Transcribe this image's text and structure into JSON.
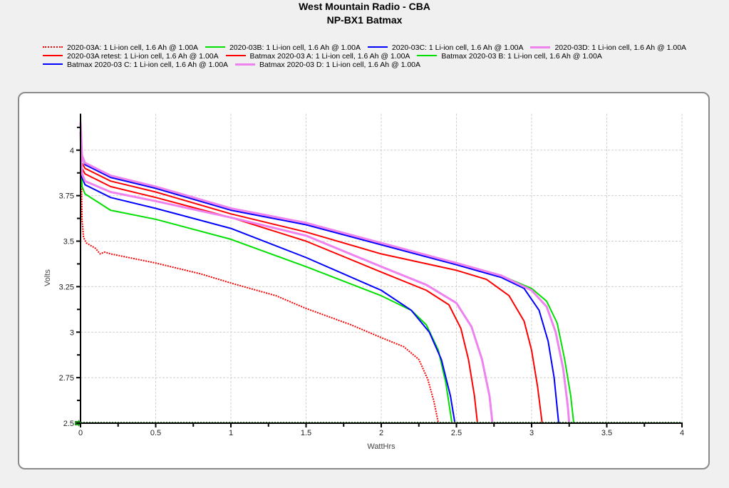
{
  "title": "West Mountain Radio - CBA",
  "subtitle": "NP-BX1 Batmax",
  "legend": {
    "rows": [
      [
        0,
        1,
        2,
        3
      ],
      [
        4,
        5,
        6
      ],
      [
        7,
        8
      ]
    ]
  },
  "chart_data": {
    "type": "line",
    "title": "West Mountain Radio - CBA",
    "subtitle": "NP-BX1 Batmax",
    "xlabel": "WattHrs",
    "ylabel": "Volts",
    "xlim": [
      0,
      4
    ],
    "ylim": [
      2.5,
      4.2
    ],
    "xticks": [
      0,
      0.5,
      1,
      1.5,
      2,
      2.5,
      3,
      3.5,
      4
    ],
    "xtick_labels": [
      "0",
      "0.5",
      "1",
      "1.5",
      "2",
      "2.5",
      "3",
      "3.5",
      "4"
    ],
    "yticks": [
      2.5,
      2.75,
      3,
      3.25,
      3.5,
      3.75,
      4
    ],
    "ytick_labels": [
      "2.5",
      "2.75",
      "3",
      "3.25",
      "3.5",
      "3.75",
      "4"
    ],
    "grid": true,
    "legend_position": "top",
    "series": [
      {
        "name": "2020-03A: 1 Li-ion cell, 1.6 Ah @ 1.00A",
        "color": "#ff0000",
        "dash": "dotted",
        "width": 2,
        "points": [
          [
            0,
            4.2
          ],
          [
            0.005,
            3.9
          ],
          [
            0.01,
            3.62
          ],
          [
            0.02,
            3.52
          ],
          [
            0.04,
            3.49
          ],
          [
            0.1,
            3.46
          ],
          [
            0.13,
            3.43
          ],
          [
            0.16,
            3.44
          ],
          [
            0.2,
            3.43
          ],
          [
            0.5,
            3.38
          ],
          [
            0.8,
            3.32
          ],
          [
            1,
            3.27
          ],
          [
            1.3,
            3.2
          ],
          [
            1.5,
            3.13
          ],
          [
            1.8,
            3.04
          ],
          [
            2,
            2.97
          ],
          [
            2.15,
            2.92
          ],
          [
            2.25,
            2.85
          ],
          [
            2.31,
            2.74
          ],
          [
            2.35,
            2.62
          ],
          [
            2.38,
            2.5
          ]
        ]
      },
      {
        "name": "2020-03B: 1 Li-ion cell, 1.6 Ah @ 1.00A",
        "color": "#00e000",
        "dash": "solid",
        "width": 2,
        "points": [
          [
            0,
            4.15
          ],
          [
            0.01,
            3.97
          ],
          [
            0.03,
            3.93
          ],
          [
            0.2,
            3.86
          ],
          [
            0.5,
            3.79
          ],
          [
            1,
            3.68
          ],
          [
            1.5,
            3.6
          ],
          [
            2,
            3.49
          ],
          [
            2.5,
            3.38
          ],
          [
            2.8,
            3.31
          ],
          [
            3,
            3.24
          ],
          [
            3.1,
            3.17
          ],
          [
            3.17,
            3.05
          ],
          [
            3.22,
            2.85
          ],
          [
            3.26,
            2.65
          ],
          [
            3.28,
            2.5
          ]
        ]
      },
      {
        "name": "2020-03C: 1 Li-ion cell, 1.6 Ah @ 1.00A",
        "color": "#0000ff",
        "dash": "solid",
        "width": 2,
        "points": [
          [
            0,
            4.15
          ],
          [
            0.01,
            3.97
          ],
          [
            0.03,
            3.92
          ],
          [
            0.2,
            3.85
          ],
          [
            0.5,
            3.79
          ],
          [
            1,
            3.67
          ],
          [
            1.5,
            3.59
          ],
          [
            2,
            3.48
          ],
          [
            2.5,
            3.37
          ],
          [
            2.8,
            3.3
          ],
          [
            2.95,
            3.24
          ],
          [
            3.05,
            3.12
          ],
          [
            3.11,
            2.95
          ],
          [
            3.15,
            2.75
          ],
          [
            3.18,
            2.5
          ]
        ]
      },
      {
        "name": "2020-03D: 1 Li-ion cell, 1.6 Ah @ 1.00A",
        "color": "#ee82ee",
        "dash": "solid",
        "width": 3,
        "points": [
          [
            0,
            4.15
          ],
          [
            0.01,
            3.97
          ],
          [
            0.03,
            3.93
          ],
          [
            0.2,
            3.86
          ],
          [
            0.5,
            3.8
          ],
          [
            1,
            3.68
          ],
          [
            1.5,
            3.6
          ],
          [
            2,
            3.49
          ],
          [
            2.5,
            3.38
          ],
          [
            2.8,
            3.31
          ],
          [
            3,
            3.23
          ],
          [
            3.1,
            3.14
          ],
          [
            3.16,
            3.0
          ],
          [
            3.21,
            2.8
          ],
          [
            3.24,
            2.6
          ],
          [
            3.25,
            2.5
          ]
        ]
      },
      {
        "name": "2020-03A retest: 1 Li-ion cell, 1.6 Ah @ 1.00A",
        "color": "#ff0000",
        "dash": "solid",
        "width": 2,
        "points": [
          [
            0,
            4.1
          ],
          [
            0.01,
            3.93
          ],
          [
            0.03,
            3.9
          ],
          [
            0.2,
            3.83
          ],
          [
            0.5,
            3.77
          ],
          [
            1,
            3.65
          ],
          [
            1.5,
            3.55
          ],
          [
            2,
            3.43
          ],
          [
            2.5,
            3.34
          ],
          [
            2.7,
            3.29
          ],
          [
            2.85,
            3.2
          ],
          [
            2.95,
            3.06
          ],
          [
            3.0,
            2.9
          ],
          [
            3.04,
            2.7
          ],
          [
            3.07,
            2.5
          ]
        ]
      },
      {
        "name": "Batmax 2020-03 A: 1 Li-ion cell, 1.6 Ah @ 1.00A",
        "color": "#ff0000",
        "dash": "solid",
        "width": 2,
        "points": [
          [
            0,
            4.05
          ],
          [
            0.01,
            3.9
          ],
          [
            0.03,
            3.87
          ],
          [
            0.2,
            3.8
          ],
          [
            0.5,
            3.74
          ],
          [
            1,
            3.63
          ],
          [
            1.5,
            3.5
          ],
          [
            2,
            3.33
          ],
          [
            2.3,
            3.23
          ],
          [
            2.45,
            3.15
          ],
          [
            2.53,
            3.02
          ],
          [
            2.58,
            2.85
          ],
          [
            2.62,
            2.65
          ],
          [
            2.64,
            2.5
          ]
        ]
      },
      {
        "name": "Batmax 2020-03 B: 1 Li-ion cell, 1.6 Ah @ 1.00A",
        "color": "#00e000",
        "dash": "solid",
        "width": 2,
        "points": [
          [
            0,
            4.0
          ],
          [
            0.01,
            3.8
          ],
          [
            0.03,
            3.76
          ],
          [
            0.2,
            3.67
          ],
          [
            0.5,
            3.62
          ],
          [
            1,
            3.51
          ],
          [
            1.5,
            3.36
          ],
          [
            2,
            3.2
          ],
          [
            2.2,
            3.12
          ],
          [
            2.3,
            3.04
          ],
          [
            2.38,
            2.9
          ],
          [
            2.43,
            2.72
          ],
          [
            2.47,
            2.5
          ]
        ]
      },
      {
        "name": "Batmax 2020-03 C: 1 Li-ion cell, 1.6 Ah @ 1.00A",
        "color": "#0000ff",
        "dash": "solid",
        "width": 2,
        "points": [
          [
            0,
            4.05
          ],
          [
            0.01,
            3.85
          ],
          [
            0.03,
            3.81
          ],
          [
            0.2,
            3.74
          ],
          [
            0.5,
            3.68
          ],
          [
            1,
            3.57
          ],
          [
            1.5,
            3.41
          ],
          [
            2,
            3.23
          ],
          [
            2.2,
            3.12
          ],
          [
            2.32,
            3.0
          ],
          [
            2.4,
            2.85
          ],
          [
            2.46,
            2.65
          ],
          [
            2.49,
            2.5
          ]
        ]
      },
      {
        "name": "Batmax 2020-03 D: 1 Li-ion cell, 1.6 Ah @ 1.00A",
        "color": "#ee82ee",
        "dash": "solid",
        "width": 3,
        "points": [
          [
            0,
            4.1
          ],
          [
            0.01,
            3.87
          ],
          [
            0.03,
            3.83
          ],
          [
            0.2,
            3.77
          ],
          [
            0.5,
            3.72
          ],
          [
            1,
            3.63
          ],
          [
            1.5,
            3.53
          ],
          [
            2,
            3.36
          ],
          [
            2.3,
            3.26
          ],
          [
            2.5,
            3.16
          ],
          [
            2.6,
            3.03
          ],
          [
            2.67,
            2.85
          ],
          [
            2.72,
            2.65
          ],
          [
            2.74,
            2.5
          ]
        ]
      }
    ]
  }
}
